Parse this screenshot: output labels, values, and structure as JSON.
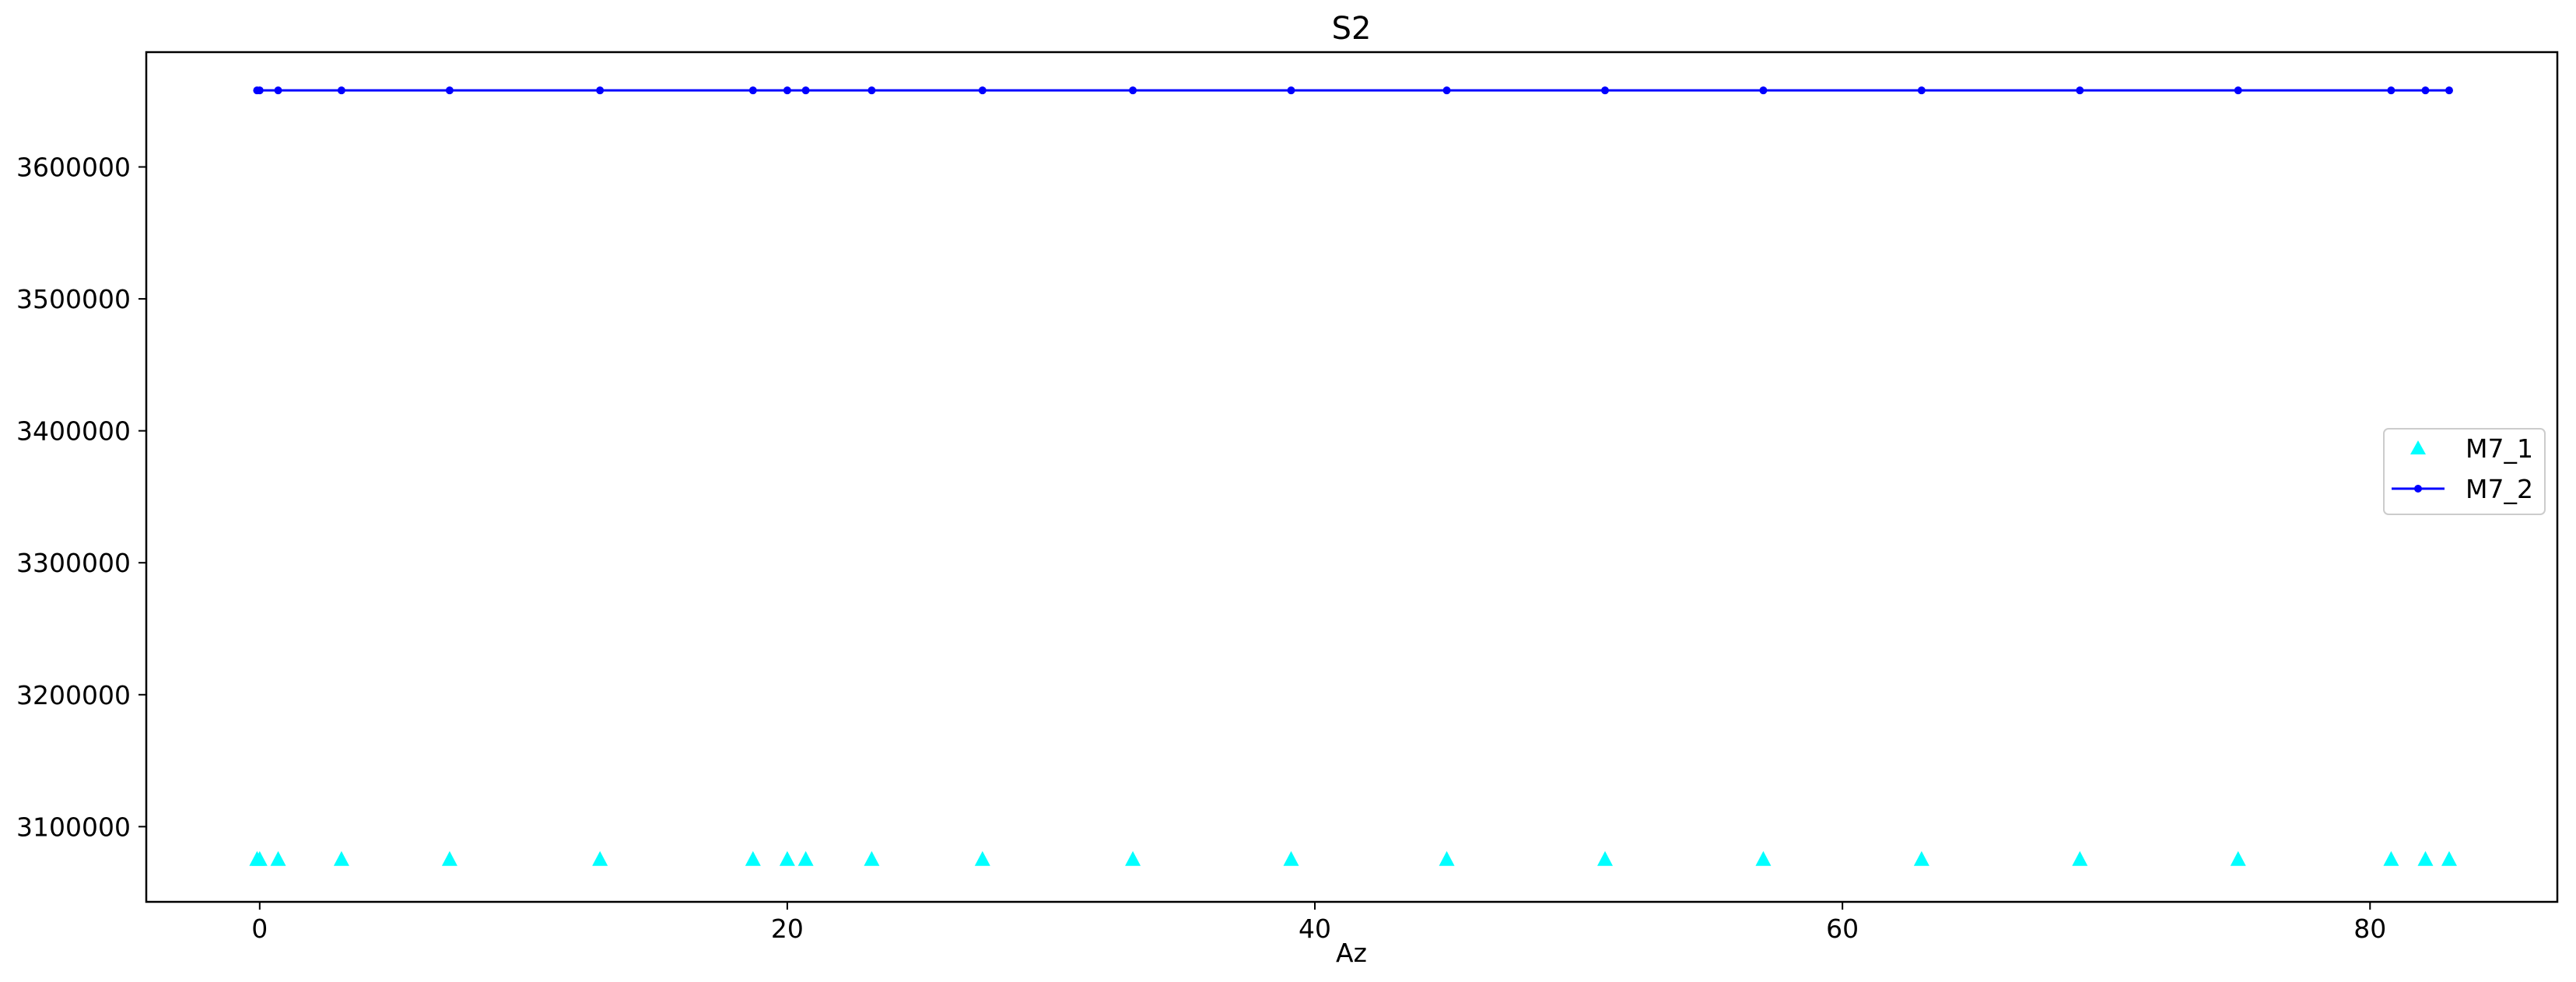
{
  "chart_data": {
    "type": "scatter",
    "title": "S2",
    "xlabel": "Az",
    "ylabel": "",
    "xlim": [
      -4.3,
      87.1
    ],
    "ylim": [
      3043000,
      3687000
    ],
    "xticks": [
      0,
      20,
      40,
      60,
      80
    ],
    "xtick_labels": [
      "0",
      "20",
      "40",
      "60",
      "80"
    ],
    "yticks": [
      3100000,
      3200000,
      3300000,
      3400000,
      3500000,
      3600000
    ],
    "ytick_labels": [
      "3100000",
      "3200000",
      "3300000",
      "3400000",
      "3500000",
      "3600000"
    ],
    "grid": false,
    "legend_placement": "center-right",
    "series": [
      {
        "name": "M7_1",
        "style": "triangle-markers",
        "color": "#00ffff",
        "x": [
          -0.1,
          0.0,
          0.7,
          3.1,
          7.2,
          12.9,
          18.7,
          20.0,
          20.7,
          23.2,
          27.4,
          33.1,
          39.1,
          45.0,
          51.0,
          57.0,
          63.0,
          69.0,
          75.0,
          80.8,
          82.1,
          83.0
        ],
        "y": [
          3075000,
          3075000,
          3075000,
          3075000,
          3075000,
          3075000,
          3075000,
          3075000,
          3075000,
          3075000,
          3075000,
          3075000,
          3075000,
          3075000,
          3075000,
          3075000,
          3075000,
          3075000,
          3075000,
          3075000,
          3075000,
          3075000
        ]
      },
      {
        "name": "M7_2",
        "style": "line-with-dot-markers",
        "color": "#0000ff",
        "x": [
          -0.1,
          0.0,
          0.7,
          3.1,
          7.2,
          12.9,
          18.7,
          20.0,
          20.7,
          23.2,
          27.4,
          33.1,
          39.1,
          45.0,
          51.0,
          57.0,
          63.0,
          69.0,
          75.0,
          80.8,
          82.1,
          83.0
        ],
        "y": [
          3658000,
          3658000,
          3658000,
          3658000,
          3658000,
          3658000,
          3658000,
          3658000,
          3658000,
          3658000,
          3658000,
          3658000,
          3658000,
          3658000,
          3658000,
          3658000,
          3658000,
          3658000,
          3658000,
          3658000,
          3658000,
          3658000
        ]
      }
    ]
  }
}
